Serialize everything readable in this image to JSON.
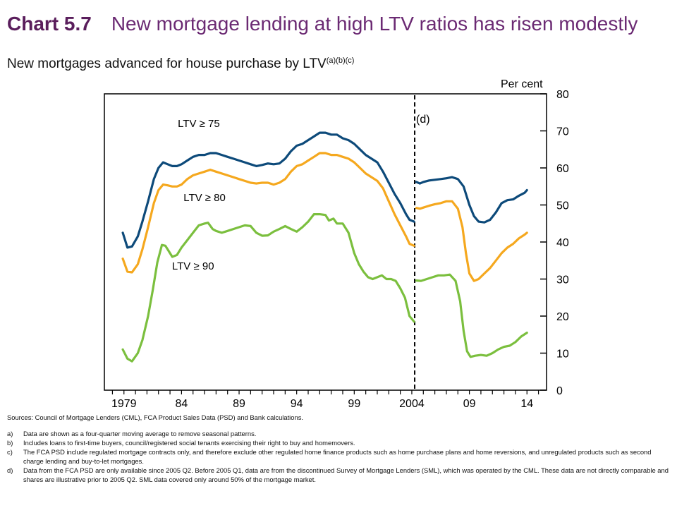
{
  "header": {
    "chart_number": "Chart 5.7",
    "title": "New mortgage lending at high LTV ratios has risen modestly"
  },
  "subtitle": {
    "text": "New mortgages advanced for house purchase by LTV",
    "superscript": "(a)(b)(c)"
  },
  "chart_data": {
    "type": "line",
    "title": "New mortgages advanced for house purchase by LTV",
    "ylabel": "Per cent",
    "ylim": [
      0,
      80
    ],
    "yticks": [
      0,
      10,
      20,
      30,
      40,
      50,
      60,
      70,
      80
    ],
    "xlim": [
      1977.3,
      2015.7
    ],
    "xticks": [
      {
        "value": 1979,
        "label": "1979"
      },
      {
        "value": 1984,
        "label": "84"
      },
      {
        "value": 1989,
        "label": "89"
      },
      {
        "value": 1994,
        "label": "94"
      },
      {
        "value": 1999,
        "label": "99"
      },
      {
        "value": 2004,
        "label": "2004"
      },
      {
        "value": 2009,
        "label": "09"
      },
      {
        "value": 2014,
        "label": "14"
      }
    ],
    "break_line": {
      "x": 2004.25,
      "label": "(d)"
    },
    "series": [
      {
        "name": "LTV ≥ 75",
        "color": "#0d4a7a",
        "segments": [
          [
            [
              1978.9,
              42.5
            ],
            [
              1979.3,
              38.5
            ],
            [
              1979.7,
              38.8
            ],
            [
              1980.2,
              41.5
            ],
            [
              1980.6,
              45.5
            ],
            [
              1981.1,
              51
            ],
            [
              1981.6,
              57
            ],
            [
              1982.0,
              60
            ],
            [
              1982.4,
              61.5
            ],
            [
              1982.8,
              61
            ],
            [
              1983.2,
              60.5
            ],
            [
              1983.6,
              60.5
            ],
            [
              1984.0,
              61
            ],
            [
              1984.5,
              62
            ],
            [
              1985.0,
              63
            ],
            [
              1985.5,
              63.5
            ],
            [
              1986.0,
              63.5
            ],
            [
              1986.5,
              64
            ],
            [
              1987.0,
              64
            ],
            [
              1987.5,
              63.5
            ],
            [
              1988.0,
              63
            ],
            [
              1988.5,
              62.5
            ],
            [
              1989.0,
              62
            ],
            [
              1989.5,
              61.5
            ],
            [
              1990.0,
              61
            ],
            [
              1990.5,
              60.5
            ],
            [
              1991.0,
              60.8
            ],
            [
              1991.5,
              61.2
            ],
            [
              1992.0,
              61
            ],
            [
              1992.5,
              61.2
            ],
            [
              1993.0,
              62.5
            ],
            [
              1993.5,
              64.5
            ],
            [
              1994.0,
              66
            ],
            [
              1994.5,
              66.5
            ],
            [
              1995.0,
              67.5
            ],
            [
              1995.5,
              68.5
            ],
            [
              1996.0,
              69.5
            ],
            [
              1996.5,
              69.5
            ],
            [
              1997.0,
              69
            ],
            [
              1997.5,
              69
            ],
            [
              1998.0,
              68
            ],
            [
              1998.5,
              67.5
            ],
            [
              1999.0,
              66.5
            ],
            [
              1999.5,
              65
            ],
            [
              2000.0,
              63.5
            ],
            [
              2000.5,
              62.5
            ],
            [
              2001.0,
              61.5
            ],
            [
              2001.5,
              59
            ],
            [
              2002.0,
              56
            ],
            [
              2002.5,
              53
            ],
            [
              2003.0,
              50.5
            ],
            [
              2003.5,
              47.5
            ],
            [
              2003.8,
              46
            ],
            [
              2004.2,
              45.5
            ]
          ],
          [
            [
              2004.4,
              56.2
            ],
            [
              2004.7,
              55.8
            ],
            [
              2005.0,
              56.2
            ],
            [
              2005.5,
              56.6
            ],
            [
              2006.0,
              56.8
            ],
            [
              2006.5,
              57
            ],
            [
              2007.0,
              57.2
            ],
            [
              2007.5,
              57.5
            ],
            [
              2008.0,
              57
            ],
            [
              2008.5,
              55
            ],
            [
              2009.0,
              50
            ],
            [
              2009.4,
              47
            ],
            [
              2009.8,
              45.5
            ],
            [
              2010.3,
              45.3
            ],
            [
              2010.8,
              46
            ],
            [
              2011.3,
              48
            ],
            [
              2011.8,
              50.5
            ],
            [
              2012.3,
              51.3
            ],
            [
              2012.8,
              51.5
            ],
            [
              2013.3,
              52.5
            ],
            [
              2013.8,
              53.3
            ],
            [
              2014.0,
              54
            ]
          ]
        ]
      },
      {
        "name": "LTV ≥ 80",
        "color": "#f5a81e",
        "segments": [
          [
            [
              1978.9,
              35.5
            ],
            [
              1979.3,
              32
            ],
            [
              1979.7,
              31.8
            ],
            [
              1980.2,
              34
            ],
            [
              1980.6,
              38
            ],
            [
              1981.1,
              44
            ],
            [
              1981.6,
              50.5
            ],
            [
              1982.0,
              54
            ],
            [
              1982.4,
              55.5
            ],
            [
              1982.8,
              55.3
            ],
            [
              1983.2,
              55
            ],
            [
              1983.6,
              55
            ],
            [
              1984.0,
              55.5
            ],
            [
              1984.5,
              57
            ],
            [
              1985.0,
              58
            ],
            [
              1985.5,
              58.5
            ],
            [
              1986.0,
              59
            ],
            [
              1986.5,
              59.5
            ],
            [
              1987.0,
              59
            ],
            [
              1987.5,
              58.5
            ],
            [
              1988.0,
              58
            ],
            [
              1988.5,
              57.5
            ],
            [
              1989.0,
              57
            ],
            [
              1989.5,
              56.5
            ],
            [
              1990.0,
              56
            ],
            [
              1990.5,
              55.8
            ],
            [
              1991.0,
              56
            ],
            [
              1991.5,
              56
            ],
            [
              1992.0,
              55.5
            ],
            [
              1992.5,
              56
            ],
            [
              1993.0,
              57
            ],
            [
              1993.5,
              59
            ],
            [
              1994.0,
              60.5
            ],
            [
              1994.5,
              61
            ],
            [
              1995.0,
              62
            ],
            [
              1995.5,
              63
            ],
            [
              1996.0,
              64
            ],
            [
              1996.5,
              64
            ],
            [
              1997.0,
              63.5
            ],
            [
              1997.5,
              63.5
            ],
            [
              1998.0,
              63
            ],
            [
              1998.5,
              62.5
            ],
            [
              1999.0,
              61.5
            ],
            [
              1999.5,
              60
            ],
            [
              2000.0,
              58.5
            ],
            [
              2000.5,
              57.5
            ],
            [
              2001.0,
              56.5
            ],
            [
              2001.5,
              54.5
            ],
            [
              2002.0,
              51
            ],
            [
              2002.5,
              47.5
            ],
            [
              2003.0,
              44.5
            ],
            [
              2003.5,
              41.5
            ],
            [
              2003.8,
              39.5
            ],
            [
              2004.2,
              39
            ]
          ],
          [
            [
              2004.4,
              49.2
            ],
            [
              2004.7,
              49
            ],
            [
              2005.0,
              49.3
            ],
            [
              2005.5,
              49.8
            ],
            [
              2006.0,
              50.2
            ],
            [
              2006.5,
              50.5
            ],
            [
              2007.0,
              51
            ],
            [
              2007.5,
              51
            ],
            [
              2008.0,
              49
            ],
            [
              2008.4,
              44
            ],
            [
              2008.7,
              37
            ],
            [
              2009.0,
              31.5
            ],
            [
              2009.4,
              29.5
            ],
            [
              2009.8,
              30
            ],
            [
              2010.3,
              31.5
            ],
            [
              2010.8,
              33
            ],
            [
              2011.3,
              35
            ],
            [
              2011.8,
              37
            ],
            [
              2012.3,
              38.5
            ],
            [
              2012.8,
              39.5
            ],
            [
              2013.3,
              41
            ],
            [
              2013.8,
              42
            ],
            [
              2014.0,
              42.5
            ]
          ]
        ]
      },
      {
        "name": "LTV ≥ 90",
        "color": "#7bbf3e",
        "segments": [
          [
            [
              1978.9,
              11
            ],
            [
              1979.3,
              8.5
            ],
            [
              1979.7,
              7.8
            ],
            [
              1980.2,
              10
            ],
            [
              1980.6,
              13.5
            ],
            [
              1981.1,
              20
            ],
            [
              1981.5,
              27
            ],
            [
              1981.9,
              34.5
            ],
            [
              1982.3,
              39.2
            ],
            [
              1982.6,
              39
            ],
            [
              1982.9,
              37.5
            ],
            [
              1983.2,
              36
            ],
            [
              1983.6,
              36.5
            ],
            [
              1984.0,
              38.5
            ],
            [
              1984.5,
              40.5
            ],
            [
              1985.0,
              42.5
            ],
            [
              1985.5,
              44.5
            ],
            [
              1986.0,
              45
            ],
            [
              1986.3,
              45.2
            ],
            [
              1986.7,
              43.5
            ],
            [
              1987.0,
              43
            ],
            [
              1987.5,
              42.5
            ],
            [
              1988.0,
              43
            ],
            [
              1988.5,
              43.5
            ],
            [
              1989.0,
              44
            ],
            [
              1989.5,
              44.5
            ],
            [
              1990.0,
              44.3
            ],
            [
              1990.5,
              42.5
            ],
            [
              1991.0,
              41.7
            ],
            [
              1991.5,
              41.8
            ],
            [
              1992.0,
              42.8
            ],
            [
              1992.5,
              43.5
            ],
            [
              1993.0,
              44.3
            ],
            [
              1993.5,
              43.5
            ],
            [
              1994.0,
              42.8
            ],
            [
              1994.5,
              44
            ],
            [
              1995.0,
              45.5
            ],
            [
              1995.5,
              47.5
            ],
            [
              1996.0,
              47.5
            ],
            [
              1996.5,
              47.3
            ],
            [
              1996.8,
              45.8
            ],
            [
              1997.2,
              46.3
            ],
            [
              1997.5,
              45
            ],
            [
              1998.0,
              45
            ],
            [
              1998.5,
              42.5
            ],
            [
              1999.0,
              37
            ],
            [
              1999.4,
              34
            ],
            [
              1999.8,
              32
            ],
            [
              2000.2,
              30.5
            ],
            [
              2000.6,
              30
            ],
            [
              2001.0,
              30.5
            ],
            [
              2001.4,
              31
            ],
            [
              2001.8,
              30
            ],
            [
              2002.2,
              30
            ],
            [
              2002.6,
              29.5
            ],
            [
              2003.0,
              27.5
            ],
            [
              2003.4,
              25
            ],
            [
              2003.8,
              20
            ],
            [
              2004.2,
              18.5
            ]
          ],
          [
            [
              2004.4,
              29.6
            ],
            [
              2004.8,
              29.5
            ],
            [
              2005.3,
              30
            ],
            [
              2005.8,
              30.5
            ],
            [
              2006.3,
              31
            ],
            [
              2006.8,
              31
            ],
            [
              2007.3,
              31.2
            ],
            [
              2007.8,
              29.5
            ],
            [
              2008.2,
              24
            ],
            [
              2008.5,
              16
            ],
            [
              2008.8,
              10.5
            ],
            [
              2009.1,
              9
            ],
            [
              2009.5,
              9.3
            ],
            [
              2010.0,
              9.5
            ],
            [
              2010.5,
              9.3
            ],
            [
              2011.0,
              10
            ],
            [
              2011.5,
              11
            ],
            [
              2012.0,
              11.7
            ],
            [
              2012.5,
              12
            ],
            [
              2013.0,
              13
            ],
            [
              2013.5,
              14.5
            ],
            [
              2014.0,
              15.5
            ]
          ]
        ]
      }
    ]
  },
  "footer": {
    "sources": "Sources: Council of Mortgage Lenders (CML), FCA Product Sales Data (PSD) and Bank calculations.",
    "notes": [
      {
        "letter": "a)",
        "text": "Data are shown as a four-quarter moving average to remove seasonal patterns."
      },
      {
        "letter": "b)",
        "text": "Includes loans to first-time buyers, council/registered social tenants exercising their right to buy and homemovers."
      },
      {
        "letter": "c)",
        "text": "The FCA PSD include regulated mortgage contracts only, and therefore exclude other regulated home finance products such as home purchase plans and home reversions, and unregulated products such as second charge lending and buy-to-let mortgages."
      },
      {
        "letter": "d)",
        "text": "Data from the FCA PSD are only available since 2005 Q2. Before 2005 Q1, data are from the discontinued Survey of Mortgage Lenders (SML), which was operated by the CML. These data are not directly comparable and shares are illustrative prior to 2005 Q2. SML data covered only around 50% of the mortgage market."
      }
    ]
  }
}
